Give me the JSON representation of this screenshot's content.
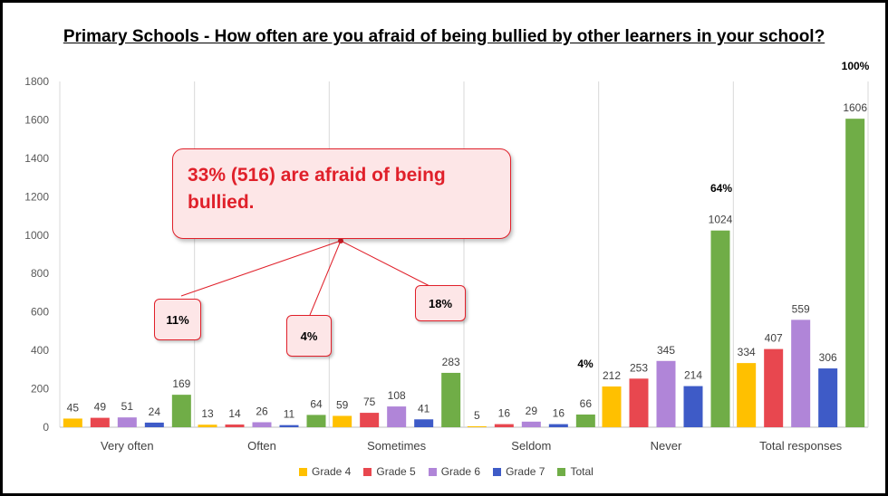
{
  "chart_data": {
    "type": "bar",
    "title": "Primary Schools - How often are you afraid of being bullied by other learners in your school?",
    "categories": [
      "Very often",
      "Often",
      "Sometimes",
      "Seldom",
      "Never",
      "Total responses"
    ],
    "series": [
      {
        "name": "Grade 4",
        "color": "#ffc000",
        "values": [
          45,
          13,
          59,
          5,
          212,
          334
        ]
      },
      {
        "name": "Grade 5",
        "color": "#e8474f",
        "values": [
          49,
          14,
          75,
          16,
          253,
          407
        ]
      },
      {
        "name": "Grade 6",
        "color": "#b085d8",
        "values": [
          51,
          26,
          108,
          29,
          345,
          559
        ]
      },
      {
        "name": "Grade 7",
        "color": "#3e5bc7",
        "values": [
          24,
          11,
          41,
          16,
          214,
          306
        ]
      },
      {
        "name": "Total",
        "color": "#70ad47",
        "values": [
          169,
          64,
          283,
          66,
          1024,
          1606
        ]
      }
    ],
    "ylim": [
      0,
      1800
    ],
    "yticks": [
      0,
      200,
      400,
      600,
      800,
      1000,
      1200,
      1400,
      1600,
      1800
    ],
    "gridlines": "vertical category separators",
    "legend_position": "bottom",
    "percent_labels": {
      "seldom": "4%",
      "never": "64%",
      "total": "100%"
    },
    "annotations": {
      "main_callout": "33% (516) are afraid of being bullied.",
      "very_often_pct": "11%",
      "often_pct": "4%",
      "sometimes_pct": "18%"
    }
  }
}
